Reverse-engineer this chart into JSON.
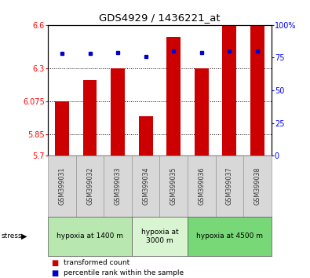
{
  "title": "GDS4929 / 1436221_at",
  "samples": [
    "GSM399031",
    "GSM399032",
    "GSM399033",
    "GSM399034",
    "GSM399035",
    "GSM399036",
    "GSM399037",
    "GSM399038"
  ],
  "red_values": [
    6.075,
    6.22,
    6.3,
    5.97,
    6.52,
    6.3,
    6.6,
    6.6
  ],
  "blue_values": [
    78,
    78,
    79,
    76,
    80,
    79,
    80,
    80
  ],
  "y_min": 5.7,
  "y_max": 6.6,
  "y_ticks": [
    5.7,
    5.85,
    6.075,
    6.3,
    6.6
  ],
  "y_tick_labels": [
    "5.7",
    "5.85",
    "6.075",
    "6.3",
    "6.6"
  ],
  "right_y_ticks": [
    0,
    25,
    50,
    75,
    100
  ],
  "right_y_labels": [
    "0",
    "25",
    "50",
    "75",
    "100%"
  ],
  "groups": [
    {
      "label": "hypoxia at 1400 m",
      "start": 0,
      "end": 3,
      "color": "#b8e8b0"
    },
    {
      "label": "hypoxia at\n3000 m",
      "start": 3,
      "end": 5,
      "color": "#d8f4d0"
    },
    {
      "label": "hypoxia at 4500 m",
      "start": 5,
      "end": 8,
      "color": "#78d878"
    }
  ],
  "bar_color": "#cc0000",
  "dot_color": "#0000cc",
  "bar_width": 0.5,
  "sample_bg": "#d8d8d8",
  "legend_items": [
    {
      "color": "#cc0000",
      "label": "transformed count"
    },
    {
      "color": "#0000cc",
      "label": "percentile rank within the sample"
    }
  ],
  "stress_label": "stress"
}
